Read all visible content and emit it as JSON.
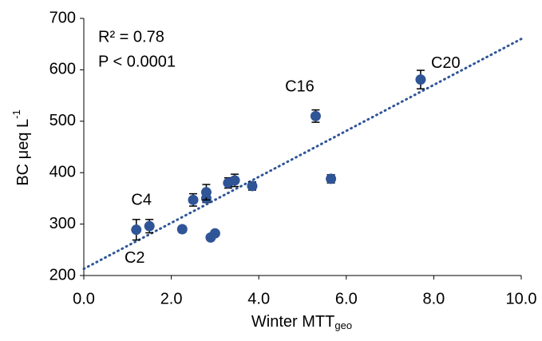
{
  "chart_data": {
    "type": "scatter",
    "x_label": {
      "text": "Winter MTT",
      "sub": "geo"
    },
    "y_label": {
      "text": "BC μeq L",
      "sup": "-1"
    },
    "annotations": [
      "R² = 0.78",
      "P < 0.0001"
    ],
    "x": [
      1.2,
      1.5,
      2.25,
      2.5,
      2.8,
      2.8,
      2.9,
      3.0,
      3.3,
      3.45,
      3.85,
      5.3,
      5.65,
      7.7
    ],
    "values": [
      289,
      296,
      290,
      347,
      350,
      362,
      274,
      282,
      380,
      385,
      374,
      510,
      388,
      581
    ],
    "errors": [
      20,
      13,
      6,
      12,
      8,
      15,
      5,
      5,
      10,
      12,
      8,
      12,
      8,
      18
    ],
    "labels": [
      "C2",
      "C4",
      null,
      null,
      null,
      null,
      null,
      null,
      null,
      null,
      null,
      "C16",
      null,
      "C20"
    ],
    "color": "#2f5597",
    "trendline": {
      "x": [
        0,
        10
      ],
      "y": [
        213,
        660
      ],
      "color": "#2f5597"
    },
    "xlim": [
      0,
      10
    ],
    "xticks": [
      {
        "value": 0,
        "label": "0.0"
      },
      {
        "value": 2,
        "label": "2.0"
      },
      {
        "value": 4,
        "label": "4.0"
      },
      {
        "value": 6,
        "label": "6.0"
      },
      {
        "value": 8,
        "label": "8.0"
      },
      {
        "value": 10,
        "label": "10.0"
      }
    ],
    "ylim": [
      200,
      700
    ],
    "yticks": [
      200,
      300,
      400,
      500,
      600,
      700
    ],
    "grid": false
  }
}
